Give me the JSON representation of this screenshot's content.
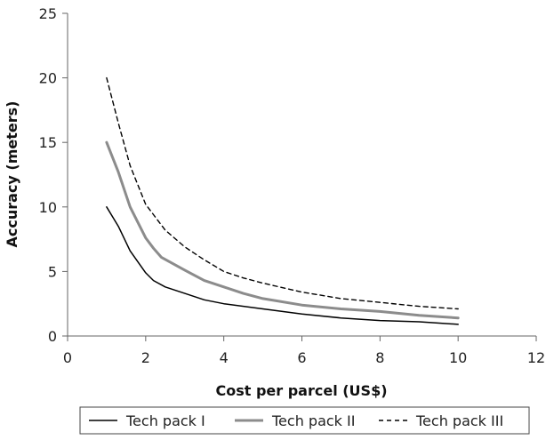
{
  "chart_data": {
    "type": "line",
    "title": "",
    "xlabel": "Cost per parcel (US$)",
    "ylabel": "Accuracy (meters)",
    "xlim": [
      0,
      12
    ],
    "ylim": [
      0,
      25
    ],
    "x_ticks": [
      "0",
      "2",
      "4",
      "6",
      "8",
      "10",
      "12"
    ],
    "y_ticks": [
      "0",
      "5",
      "10",
      "15",
      "20",
      "25"
    ],
    "grid": false,
    "legend_position": "bottom",
    "series": [
      {
        "name": "Tech pack I",
        "style": "thin-solid",
        "color": "#000000",
        "points": [
          [
            1,
            10
          ],
          [
            1.3,
            8.5
          ],
          [
            1.6,
            6.6
          ],
          [
            2,
            4.9
          ],
          [
            2.2,
            4.3
          ],
          [
            2.5,
            3.8
          ],
          [
            3,
            3.3
          ],
          [
            3.5,
            2.8
          ],
          [
            4,
            2.5
          ],
          [
            5,
            2.1
          ],
          [
            6,
            1.7
          ],
          [
            7,
            1.4
          ],
          [
            8,
            1.2
          ],
          [
            9,
            1.1
          ],
          [
            10,
            0.9
          ]
        ]
      },
      {
        "name": "Tech pack II",
        "style": "thick-solid",
        "color": "#8c8c8c",
        "points": [
          [
            1,
            15
          ],
          [
            1.3,
            12.7
          ],
          [
            1.6,
            10
          ],
          [
            2,
            7.6
          ],
          [
            2.2,
            6.8
          ],
          [
            2.4,
            6.1
          ],
          [
            3,
            5.1
          ],
          [
            3.5,
            4.3
          ],
          [
            4,
            3.8
          ],
          [
            4.5,
            3.3
          ],
          [
            5,
            2.9
          ],
          [
            6,
            2.4
          ],
          [
            7,
            2.1
          ],
          [
            8,
            1.9
          ],
          [
            9,
            1.6
          ],
          [
            10,
            1.4
          ]
        ]
      },
      {
        "name": "Tech pack III",
        "style": "dashed",
        "color": "#000000",
        "points": [
          [
            1,
            20
          ],
          [
            1.3,
            16.5
          ],
          [
            1.6,
            13.2
          ],
          [
            2,
            10.2
          ],
          [
            2.5,
            8.2
          ],
          [
            3,
            6.9
          ],
          [
            3.5,
            5.9
          ],
          [
            4,
            5
          ],
          [
            4.5,
            4.5
          ],
          [
            5,
            4.1
          ],
          [
            6,
            3.4
          ],
          [
            7,
            2.9
          ],
          [
            8,
            2.6
          ],
          [
            9,
            2.3
          ],
          [
            10,
            2.1
          ]
        ]
      }
    ]
  }
}
